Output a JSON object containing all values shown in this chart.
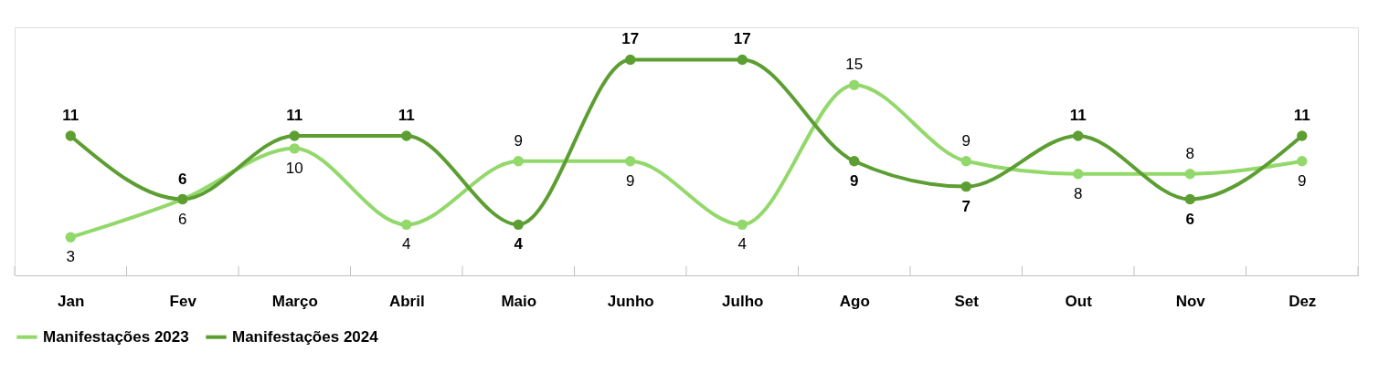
{
  "chart_data": {
    "type": "line",
    "categories": [
      "Jan",
      "Fev",
      "Março",
      "Abril",
      "Maio",
      "Junho",
      "Julho",
      "Ago",
      "Set",
      "Out",
      "Nov",
      "Dez"
    ],
    "series": [
      {
        "name": "Manifestações 2023",
        "color": "#92d86a",
        "values": [
          3,
          6,
          10,
          4,
          9,
          9,
          4,
          15,
          9,
          8,
          8,
          9
        ]
      },
      {
        "name": "Manifestações 2024",
        "color": "#5c9e32",
        "values": [
          11,
          6,
          11,
          11,
          4,
          17,
          17,
          9,
          7,
          11,
          6,
          11
        ]
      }
    ],
    "data_labels": true,
    "legend": "bottom",
    "grid": false,
    "marker": "circle",
    "line_style": "solid"
  }
}
